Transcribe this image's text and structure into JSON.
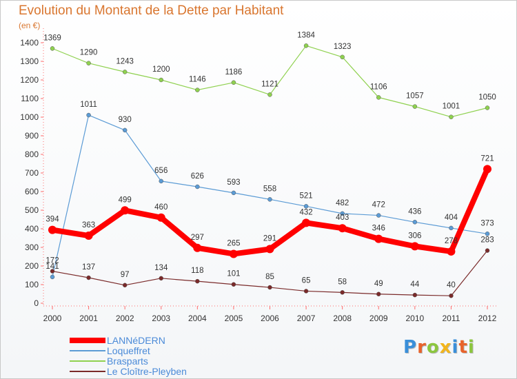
{
  "title": "Evolution du Montant de la Dette par Habitant",
  "subtitle": "(en €)",
  "chart_data": {
    "type": "line",
    "x": [
      "2000",
      "2001",
      "2002",
      "2003",
      "2004",
      "2005",
      "2006",
      "2007",
      "2008",
      "2009",
      "2010",
      "2011",
      "2012"
    ],
    "ylim": [
      0,
      1400
    ],
    "yticks": [
      0,
      100,
      200,
      300,
      400,
      500,
      600,
      700,
      800,
      900,
      1000,
      1100,
      1200,
      1300,
      1400
    ],
    "grid": false,
    "legend_position": "bottom-left",
    "series": [
      {
        "name": "LANNéDERN",
        "color": "#ff0000",
        "values": [
          394,
          363,
          499,
          460,
          297,
          265,
          291,
          432,
          403,
          346,
          306,
          278,
          721
        ],
        "labels": [
          "394",
          "363",
          "499",
          "460",
          "297",
          "265",
          "291",
          "432",
          "403",
          "346",
          "306",
          "278",
          "721"
        ]
      },
      {
        "name": "Loqueffret",
        "color": "#5b9bd5",
        "values": [
          141,
          1011,
          930,
          656,
          626,
          593,
          558,
          521,
          482,
          472,
          436,
          404,
          373
        ],
        "labels": [
          "141",
          "1011",
          "930",
          "656",
          "626",
          "593",
          "558",
          "521",
          "482",
          "472",
          "436",
          "404",
          "373"
        ]
      },
      {
        "name": "Brasparts",
        "color": "#8fd14f",
        "values": [
          1369,
          1290,
          1243,
          1200,
          1146,
          1186,
          1121,
          1384,
          1323,
          1106,
          1057,
          1001,
          1050
        ],
        "labels": [
          "1369",
          "1290",
          "1243",
          "1200",
          "1146",
          "1186",
          "1121",
          "1384",
          "1323",
          "1106",
          "1057",
          "1001",
          "1050"
        ]
      },
      {
        "name": "Le Cloître-Pleyben",
        "color": "#7a2a2a",
        "values": [
          172,
          137,
          97,
          134,
          118,
          101,
          85,
          65,
          58,
          49,
          44,
          40,
          283
        ],
        "labels": [
          "172",
          "137",
          "97",
          "134",
          "118",
          "101",
          "85",
          "65",
          "58",
          "49",
          "44",
          "40",
          "283"
        ]
      }
    ]
  },
  "logo": {
    "letters": [
      "P",
      "r",
      "o",
      "x",
      "i",
      "t",
      "i"
    ],
    "colors": [
      "#3a8fd9",
      "#e8632b",
      "#8cc63f",
      "#f2b51c",
      "#3a8fd9",
      "#e8632b",
      "#8cc63f"
    ]
  }
}
